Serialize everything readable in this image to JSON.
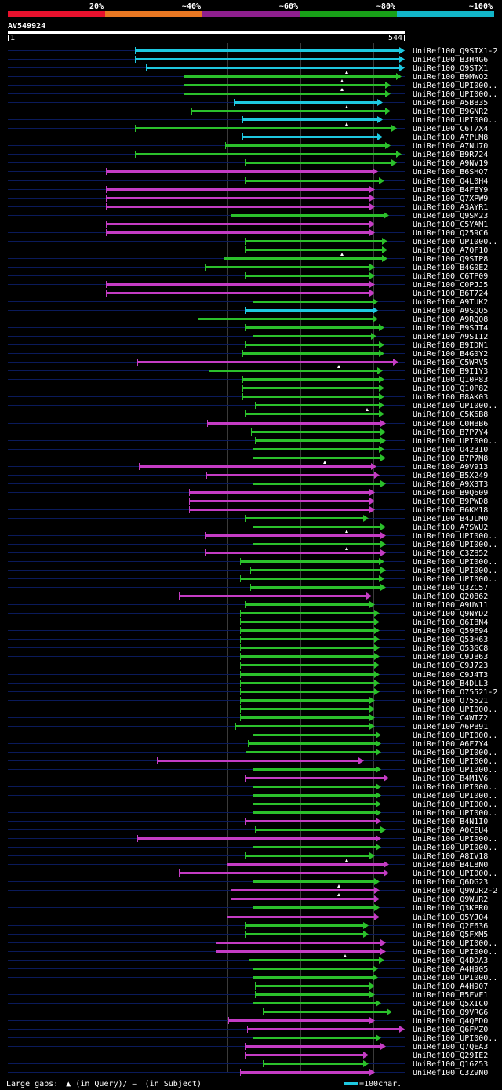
{
  "legend": {
    "segments": [
      {
        "label": "20%",
        "color": "#e8112d"
      },
      {
        "label": "~40%",
        "color": "#e87722"
      },
      {
        "label": "~60%",
        "color": "#8e1f8e"
      },
      {
        "label": "~80%",
        "color": "#18a018"
      },
      {
        "label": "~100%",
        "color": "#12b5c8"
      }
    ]
  },
  "query": {
    "name": "AV549924",
    "start": "1",
    "end": "544"
  },
  "colors": {
    "blue": "#1ec8e0",
    "green": "#2bc02b",
    "magenta": "#c43cc4",
    "dark": "#0a1a5a"
  },
  "hits": [
    {
      "name": "UniRef100_Q9STX1-2",
      "s": 172,
      "e": 516,
      "c": "blue"
    },
    {
      "name": "UniRef100_B3H4G6",
      "s": 172,
      "e": 516,
      "c": "blue"
    },
    {
      "name": "UniRef100_Q9STX1",
      "s": 186,
      "e": 516,
      "c": "blue"
    },
    {
      "name": "UniRef100_B9MWQ2",
      "s": 234,
      "e": 512,
      "c": "green",
      "m": 442
    },
    {
      "name": "UniRef100_UPI000..",
      "s": 234,
      "e": 498,
      "c": "green",
      "m": 436
    },
    {
      "name": "UniRef100_UPI000..",
      "s": 234,
      "e": 498,
      "c": "green",
      "m": 436
    },
    {
      "name": "UniRef100_A5BB35",
      "s": 298,
      "e": 488,
      "c": "blue"
    },
    {
      "name": "UniRef100_B9GNR2",
      "s": 244,
      "e": 498,
      "c": "green",
      "m": 442
    },
    {
      "name": "UniRef100_UPI000..",
      "s": 309,
      "e": 488,
      "c": "blue"
    },
    {
      "name": "UniRef100_C6T7X4",
      "s": 172,
      "e": 506,
      "c": "green",
      "m": 442
    },
    {
      "name": "UniRef100_A7PLM8",
      "s": 309,
      "e": 488,
      "c": "blue"
    },
    {
      "name": "UniRef100_A7NU70",
      "s": 287,
      "e": 498,
      "c": "green"
    },
    {
      "name": "UniRef100_B9R724",
      "s": 172,
      "e": 512,
      "c": "green"
    },
    {
      "name": "UniRef100_A9NV19",
      "s": 312,
      "e": 506,
      "c": "green"
    },
    {
      "name": "UniRef100_B6SHQ7",
      "s": 135,
      "e": 482,
      "c": "magenta"
    },
    {
      "name": "UniRef100_Q4L0H4",
      "s": 312,
      "e": 490,
      "c": "green"
    },
    {
      "name": "UniRef100_B4FEY9",
      "s": 135,
      "e": 478,
      "c": "magenta"
    },
    {
      "name": "UniRef100_Q7XPW9",
      "s": 135,
      "e": 478,
      "c": "magenta"
    },
    {
      "name": "UniRef100_A3AYR1",
      "s": 135,
      "e": 478,
      "c": "magenta"
    },
    {
      "name": "UniRef100_Q9SM23",
      "s": 294,
      "e": 496,
      "c": "green"
    },
    {
      "name": "UniRef100_C5YAM1",
      "s": 135,
      "e": 478,
      "c": "magenta"
    },
    {
      "name": "UniRef100_Q259C6",
      "s": 135,
      "e": 478,
      "c": "magenta"
    },
    {
      "name": "UniRef100_UPI000..",
      "s": 312,
      "e": 494,
      "c": "green"
    },
    {
      "name": "UniRef100_A7QF10",
      "s": 312,
      "e": 494,
      "c": "green"
    },
    {
      "name": "UniRef100_Q9STP8",
      "s": 285,
      "e": 494,
      "c": "green",
      "m": 436
    },
    {
      "name": "UniRef100_B4G0E2",
      "s": 261,
      "e": 478,
      "c": "green"
    },
    {
      "name": "UniRef100_C6TP09",
      "s": 312,
      "e": 478,
      "c": "green"
    },
    {
      "name": "UniRef100_C0PJJ5",
      "s": 135,
      "e": 478,
      "c": "magenta"
    },
    {
      "name": "UniRef100_B6T724",
      "s": 135,
      "e": 478,
      "c": "magenta"
    },
    {
      "name": "UniRef100_A9TUK2",
      "s": 322,
      "e": 482,
      "c": "green"
    },
    {
      "name": "UniRef100_A9SQQ5",
      "s": 312,
      "e": 482,
      "c": "blue"
    },
    {
      "name": "UniRef100_A9RQQ8",
      "s": 252,
      "e": 482,
      "c": "green"
    },
    {
      "name": "UniRef100_B9SJT4",
      "s": 312,
      "e": 490,
      "c": "green"
    },
    {
      "name": "UniRef100_A9SI12",
      "s": 322,
      "e": 480,
      "c": "green"
    },
    {
      "name": "UniRef100_B9IDN1",
      "s": 312,
      "e": 490,
      "c": "green"
    },
    {
      "name": "UniRef100_B4G0Y2",
      "s": 309,
      "e": 490,
      "c": "green"
    },
    {
      "name": "UniRef100_C5WRV5",
      "s": 175,
      "e": 508,
      "c": "magenta"
    },
    {
      "name": "UniRef100_B9I1Y3",
      "s": 266,
      "e": 488,
      "c": "green",
      "m": 432
    },
    {
      "name": "UniRef100_Q10P83",
      "s": 309,
      "e": 490,
      "c": "green"
    },
    {
      "name": "UniRef100_Q10P82",
      "s": 309,
      "e": 490,
      "c": "green"
    },
    {
      "name": "UniRef100_B8AK03",
      "s": 309,
      "e": 490,
      "c": "green"
    },
    {
      "name": "UniRef100_UPI000..",
      "s": 325,
      "e": 490,
      "c": "green"
    },
    {
      "name": "UniRef100_C5K6B8",
      "s": 312,
      "e": 490,
      "c": "green",
      "m": 468
    },
    {
      "name": "UniRef100_C0HBB6",
      "s": 264,
      "e": 492,
      "c": "magenta"
    },
    {
      "name": "UniRef100_B7P7Y4",
      "s": 320,
      "e": 492,
      "c": "green"
    },
    {
      "name": "UniRef100_UPI000..",
      "s": 325,
      "e": 492,
      "c": "green"
    },
    {
      "name": "UniRef100_O42310",
      "s": 322,
      "e": 490,
      "c": "green"
    },
    {
      "name": "UniRef100_B7P7M8",
      "s": 322,
      "e": 492,
      "c": "green"
    },
    {
      "name": "UniRef100_A9V913",
      "s": 177,
      "e": 480,
      "c": "magenta",
      "m": 414
    },
    {
      "name": "UniRef100_B5X249",
      "s": 263,
      "e": 484,
      "c": "magenta"
    },
    {
      "name": "UniRef100_A9X3T3",
      "s": 322,
      "e": 492,
      "c": "green"
    },
    {
      "name": "UniRef100_B9Q609",
      "s": 241,
      "e": 478,
      "c": "magenta"
    },
    {
      "name": "UniRef100_B9PWD8",
      "s": 241,
      "e": 478,
      "c": "magenta"
    },
    {
      "name": "UniRef100_B6KM18",
      "s": 241,
      "e": 478,
      "c": "magenta"
    },
    {
      "name": "UniRef100_B4JLM0",
      "s": 312,
      "e": 470,
      "c": "green"
    },
    {
      "name": "UniRef100_A7SWU2",
      "s": 322,
      "e": 492,
      "c": "green"
    },
    {
      "name": "UniRef100_UPI000..",
      "s": 261,
      "e": 492,
      "c": "magenta",
      "m": 442
    },
    {
      "name": "UniRef100_UPI000..",
      "s": 322,
      "e": 492,
      "c": "green"
    },
    {
      "name": "UniRef100_C3ZB52",
      "s": 261,
      "e": 492,
      "c": "magenta",
      "m": 442
    },
    {
      "name": "UniRef100_UPI000..",
      "s": 306,
      "e": 490,
      "c": "green"
    },
    {
      "name": "UniRef100_UPI000..",
      "s": 319,
      "e": 492,
      "c": "green"
    },
    {
      "name": "UniRef100_UPI000..",
      "s": 306,
      "e": 490,
      "c": "green"
    },
    {
      "name": "UniRef100_Q3ZC57",
      "s": 319,
      "e": 492,
      "c": "green"
    },
    {
      "name": "UniRef100_Q20862",
      "s": 228,
      "e": 474,
      "c": "magenta"
    },
    {
      "name": "UniRef100_A9UW11",
      "s": 312,
      "e": 478,
      "c": "green"
    },
    {
      "name": "UniRef100_Q9NYD2",
      "s": 306,
      "e": 484,
      "c": "green"
    },
    {
      "name": "UniRef100_Q6IBN4",
      "s": 306,
      "e": 484,
      "c": "green"
    },
    {
      "name": "UniRef100_Q59E94",
      "s": 306,
      "e": 484,
      "c": "green"
    },
    {
      "name": "UniRef100_Q53H63",
      "s": 306,
      "e": 484,
      "c": "green"
    },
    {
      "name": "UniRef100_Q53GC8",
      "s": 306,
      "e": 484,
      "c": "green"
    },
    {
      "name": "UniRef100_C9JB63",
      "s": 306,
      "e": 484,
      "c": "green"
    },
    {
      "name": "UniRef100_C9J723",
      "s": 306,
      "e": 484,
      "c": "green"
    },
    {
      "name": "UniRef100_C9J4T3",
      "s": 306,
      "e": 484,
      "c": "green"
    },
    {
      "name": "UniRef100_B4DLL3",
      "s": 306,
      "e": 484,
      "c": "green"
    },
    {
      "name": "UniRef100_O75521-2",
      "s": 306,
      "e": 484,
      "c": "green"
    },
    {
      "name": "UniRef100_O75521",
      "s": 306,
      "e": 478,
      "c": "green"
    },
    {
      "name": "UniRef100_UPI000..",
      "s": 306,
      "e": 478,
      "c": "green"
    },
    {
      "name": "UniRef100_C4WTZ2",
      "s": 306,
      "e": 478,
      "c": "green"
    },
    {
      "name": "UniRef100_A6PB91",
      "s": 300,
      "e": 478,
      "c": "green"
    },
    {
      "name": "UniRef100_UPI000..",
      "s": 322,
      "e": 486,
      "c": "green"
    },
    {
      "name": "UniRef100_A6F7Y4",
      "s": 316,
      "e": 486,
      "c": "green"
    },
    {
      "name": "UniRef100_UPI000..",
      "s": 313,
      "e": 486,
      "c": "green"
    },
    {
      "name": "UniRef100_UPI000..",
      "s": 200,
      "e": 464,
      "c": "magenta"
    },
    {
      "name": "UniRef100_UPI000..",
      "s": 322,
      "e": 486,
      "c": "green"
    },
    {
      "name": "UniRef100_B4M1V6",
      "s": 312,
      "e": 496,
      "c": "magenta"
    },
    {
      "name": "UniRef100_UPI000..",
      "s": 322,
      "e": 486,
      "c": "green"
    },
    {
      "name": "UniRef100_UPI000..",
      "s": 322,
      "e": 486,
      "c": "green"
    },
    {
      "name": "UniRef100_UPI000..",
      "s": 322,
      "e": 486,
      "c": "green"
    },
    {
      "name": "UniRef100_UPI000..",
      "s": 322,
      "e": 486,
      "c": "green"
    },
    {
      "name": "UniRef100_B4N1I0",
      "s": 312,
      "e": 486,
      "c": "magenta"
    },
    {
      "name": "UniRef100_A0CEU4",
      "s": 325,
      "e": 492,
      "c": "green"
    },
    {
      "name": "UniRef100_UPI000..",
      "s": 175,
      "e": 486,
      "c": "magenta"
    },
    {
      "name": "UniRef100_UPI000..",
      "s": 322,
      "e": 486,
      "c": "green"
    },
    {
      "name": "UniRef100_A8IV18",
      "s": 312,
      "e": 478,
      "c": "green"
    },
    {
      "name": "UniRef100_B4L8N0",
      "s": 289,
      "e": 496,
      "c": "magenta",
      "m": 442
    },
    {
      "name": "UniRef100_UPI000..",
      "s": 228,
      "e": 496,
      "c": "magenta"
    },
    {
      "name": "UniRef100_Q6DG23",
      "s": 322,
      "e": 484,
      "c": "green"
    },
    {
      "name": "UniRef100_Q9WUR2-2",
      "s": 294,
      "e": 484,
      "c": "magenta",
      "m": 432
    },
    {
      "name": "UniRef100_Q9WUR2",
      "s": 294,
      "e": 484,
      "c": "magenta",
      "m": 432
    },
    {
      "name": "UniRef100_Q3KPR0",
      "s": 322,
      "e": 484,
      "c": "green"
    },
    {
      "name": "UniRef100_Q5YJQ4",
      "s": 289,
      "e": 484,
      "c": "magenta"
    },
    {
      "name": "UniRef100_Q2F636",
      "s": 312,
      "e": 470,
      "c": "green"
    },
    {
      "name": "UniRef100_Q5FXM5",
      "s": 312,
      "e": 470,
      "c": "green"
    },
    {
      "name": "UniRef100_UPI000..",
      "s": 275,
      "e": 492,
      "c": "magenta"
    },
    {
      "name": "UniRef100_UPI000..",
      "s": 275,
      "e": 492,
      "c": "magenta"
    },
    {
      "name": "UniRef100_Q4DDA3",
      "s": 317,
      "e": 490,
      "c": "green",
      "m": 440
    },
    {
      "name": "UniRef100_A4H905",
      "s": 322,
      "e": 482,
      "c": "green"
    },
    {
      "name": "UniRef100_UPI000..",
      "s": 322,
      "e": 482,
      "c": "green"
    },
    {
      "name": "UniRef100_A4H907",
      "s": 325,
      "e": 478,
      "c": "green"
    },
    {
      "name": "UniRef100_B5FVF1",
      "s": 325,
      "e": 478,
      "c": "green"
    },
    {
      "name": "UniRef100_Q5XIC0",
      "s": 322,
      "e": 486,
      "c": "green"
    },
    {
      "name": "UniRef100_Q9VRG6",
      "s": 335,
      "e": 500,
      "c": "green"
    },
    {
      "name": "UniRef100_Q4QED0",
      "s": 291,
      "e": 478,
      "c": "magenta"
    },
    {
      "name": "UniRef100_Q6FMZ0",
      "s": 315,
      "e": 516,
      "c": "magenta"
    },
    {
      "name": "UniRef100_UPI000..",
      "s": 322,
      "e": 486,
      "c": "green"
    },
    {
      "name": "UniRef100_Q7QEA3",
      "s": 312,
      "e": 492,
      "c": "magenta"
    },
    {
      "name": "UniRef100_Q29IE2",
      "s": 312,
      "e": 470,
      "c": "magenta"
    },
    {
      "name": "UniRef100_Q16Z53",
      "s": 335,
      "e": 470,
      "c": "green"
    },
    {
      "name": "UniRef100_C3Z9N0",
      "s": 306,
      "e": 478,
      "c": "magenta"
    }
  ],
  "footer": {
    "gaps_label": "Large gaps:",
    "query_symbol": "▲",
    "query_text": "(in Query)/",
    "subject_symbol": "–",
    "subject_text": "(in Subject)",
    "scale_text": "=100char."
  }
}
